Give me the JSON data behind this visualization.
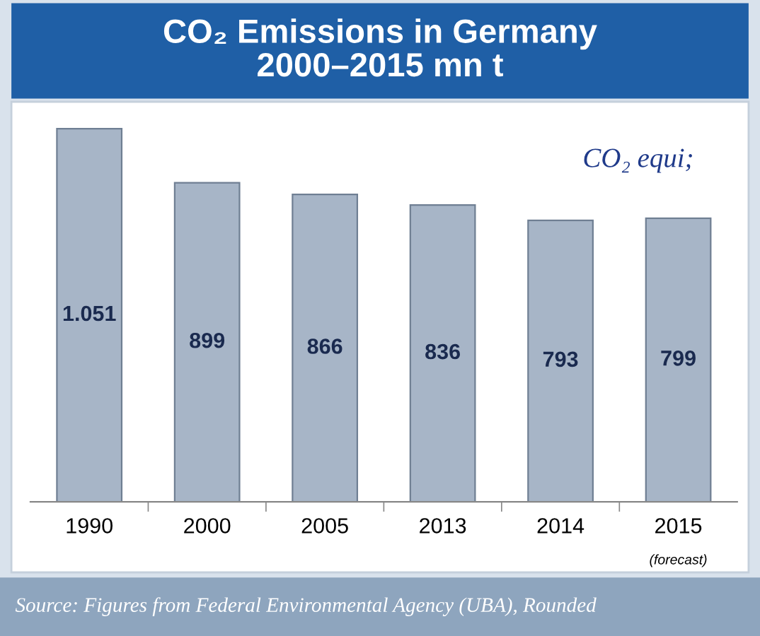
{
  "chart_data": {
    "type": "bar",
    "title": "CO₂ Emissions in Germany\n2000–2015 mn t",
    "categories": [
      "1990",
      "2000",
      "2005",
      "2013",
      "2014",
      "2015"
    ],
    "values": [
      1051,
      899,
      866,
      836,
      793,
      799
    ],
    "value_labels": [
      "1.051",
      "899",
      "866",
      "836",
      "793",
      "799"
    ],
    "color": "#a7b5c7",
    "annotations": [
      "CO₂ equi;",
      "(forecast)",
      "Source: Figures from Federal Environmental Agency (UBA), Rounded"
    ],
    "grid": false,
    "legend": false
  }
}
